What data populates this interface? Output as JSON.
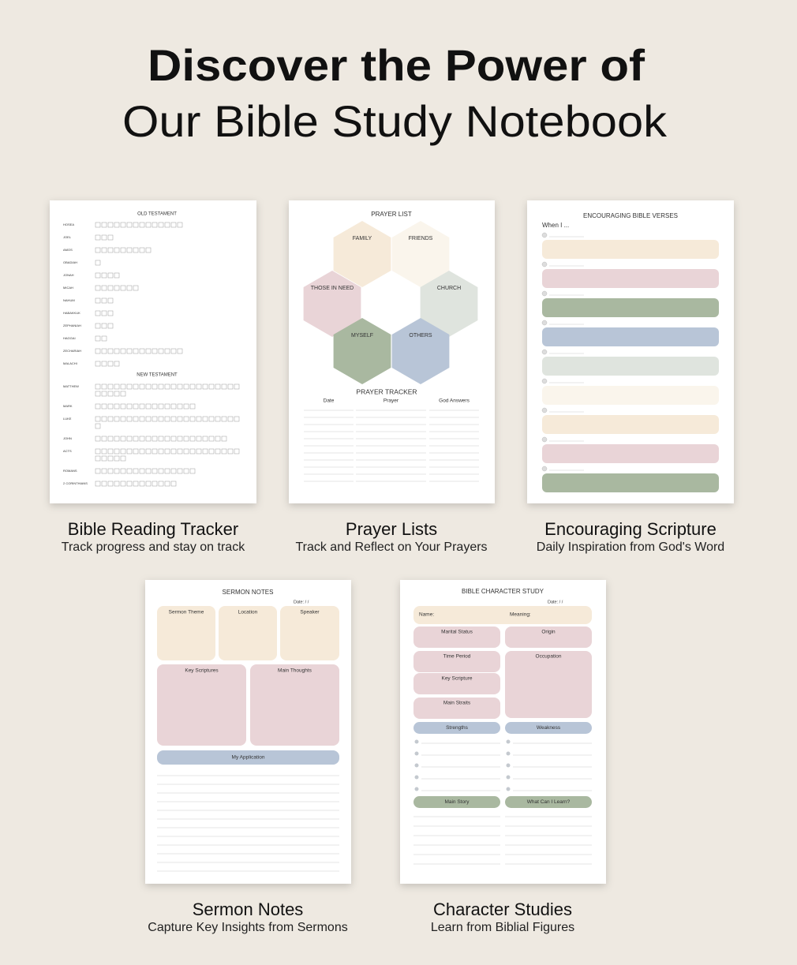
{
  "header": {
    "title_line1": "Discover the Power of",
    "title_line2": "Our Bible Study Notebook"
  },
  "reading_tracker": {
    "title": "Bible Reading Tracker",
    "subtitle": "Track progress and stay on track",
    "heading_old": "OLD TESTAMENT",
    "old_books": [
      {
        "name": "HOSEA",
        "chapters": 14
      },
      {
        "name": "JOEL",
        "chapters": 3
      },
      {
        "name": "AMOS",
        "chapters": 9
      },
      {
        "name": "OBADIAH",
        "chapters": 1
      },
      {
        "name": "JONAH",
        "chapters": 4
      },
      {
        "name": "MICAH",
        "chapters": 7
      },
      {
        "name": "NAHUM",
        "chapters": 3
      },
      {
        "name": "HABAKKUK",
        "chapters": 3
      },
      {
        "name": "ZEPHANIAH",
        "chapters": 3
      },
      {
        "name": "HAGGAI",
        "chapters": 2
      },
      {
        "name": "ZECHARIAH",
        "chapters": 14
      },
      {
        "name": "MALACHI",
        "chapters": 4
      }
    ],
    "heading_new": "NEW TESTAMENT",
    "new_books": [
      {
        "name": "MATTHEW",
        "chapters": 28
      },
      {
        "name": "MARK",
        "chapters": 16
      },
      {
        "name": "LUKE",
        "chapters": 24
      },
      {
        "name": "JOHN",
        "chapters": 21
      },
      {
        "name": "ACTS",
        "chapters": 28
      },
      {
        "name": "ROMANS",
        "chapters": 16
      },
      {
        "name": "2 CORINTHIANS",
        "chapters": 13
      }
    ]
  },
  "prayer_list": {
    "title": "Prayer Lists",
    "subtitle": "Track and Reflect on Your Prayers",
    "heading": "PRAYER LIST",
    "groups": [
      "FAMILY",
      "FRIENDS",
      "THOSE IN NEED",
      "CHURCH",
      "MYSELF",
      "OTHERS"
    ],
    "tracker_heading": "PRAYER TRACKER",
    "columns": [
      "Date",
      "Prayer",
      "God Answers"
    ]
  },
  "scripture": {
    "title": "Encouraging Scripture",
    "subtitle": "Daily Inspiration from God's Word",
    "heading": "ENCOURAGING BIBLE VERSES",
    "prompt": "When I ..."
  },
  "sermon_notes": {
    "title": "Sermon Notes",
    "subtitle": "Capture Key Insights from Sermons",
    "heading": "SERMON NOTES",
    "date": "Date:    /    /",
    "boxes": [
      "Sermon Theme",
      "Location",
      "Speaker",
      "Key Scriptures",
      "Main Thoughts",
      "My Application"
    ]
  },
  "character_study": {
    "title": "Character Studies",
    "subtitle": "Learn from Biblial Figures",
    "heading": "BIBLE CHARACTER STUDY",
    "date": "Date:    /    /",
    "name_label": "Name:",
    "meaning_label": "Meaning:",
    "fields": [
      "Marital Status",
      "Origin",
      "Time Period",
      "Occupation",
      "Key Scripture",
      "Main Straits",
      "Strengths",
      "Weakness",
      "Main Story",
      "What Can I Learn?"
    ]
  }
}
